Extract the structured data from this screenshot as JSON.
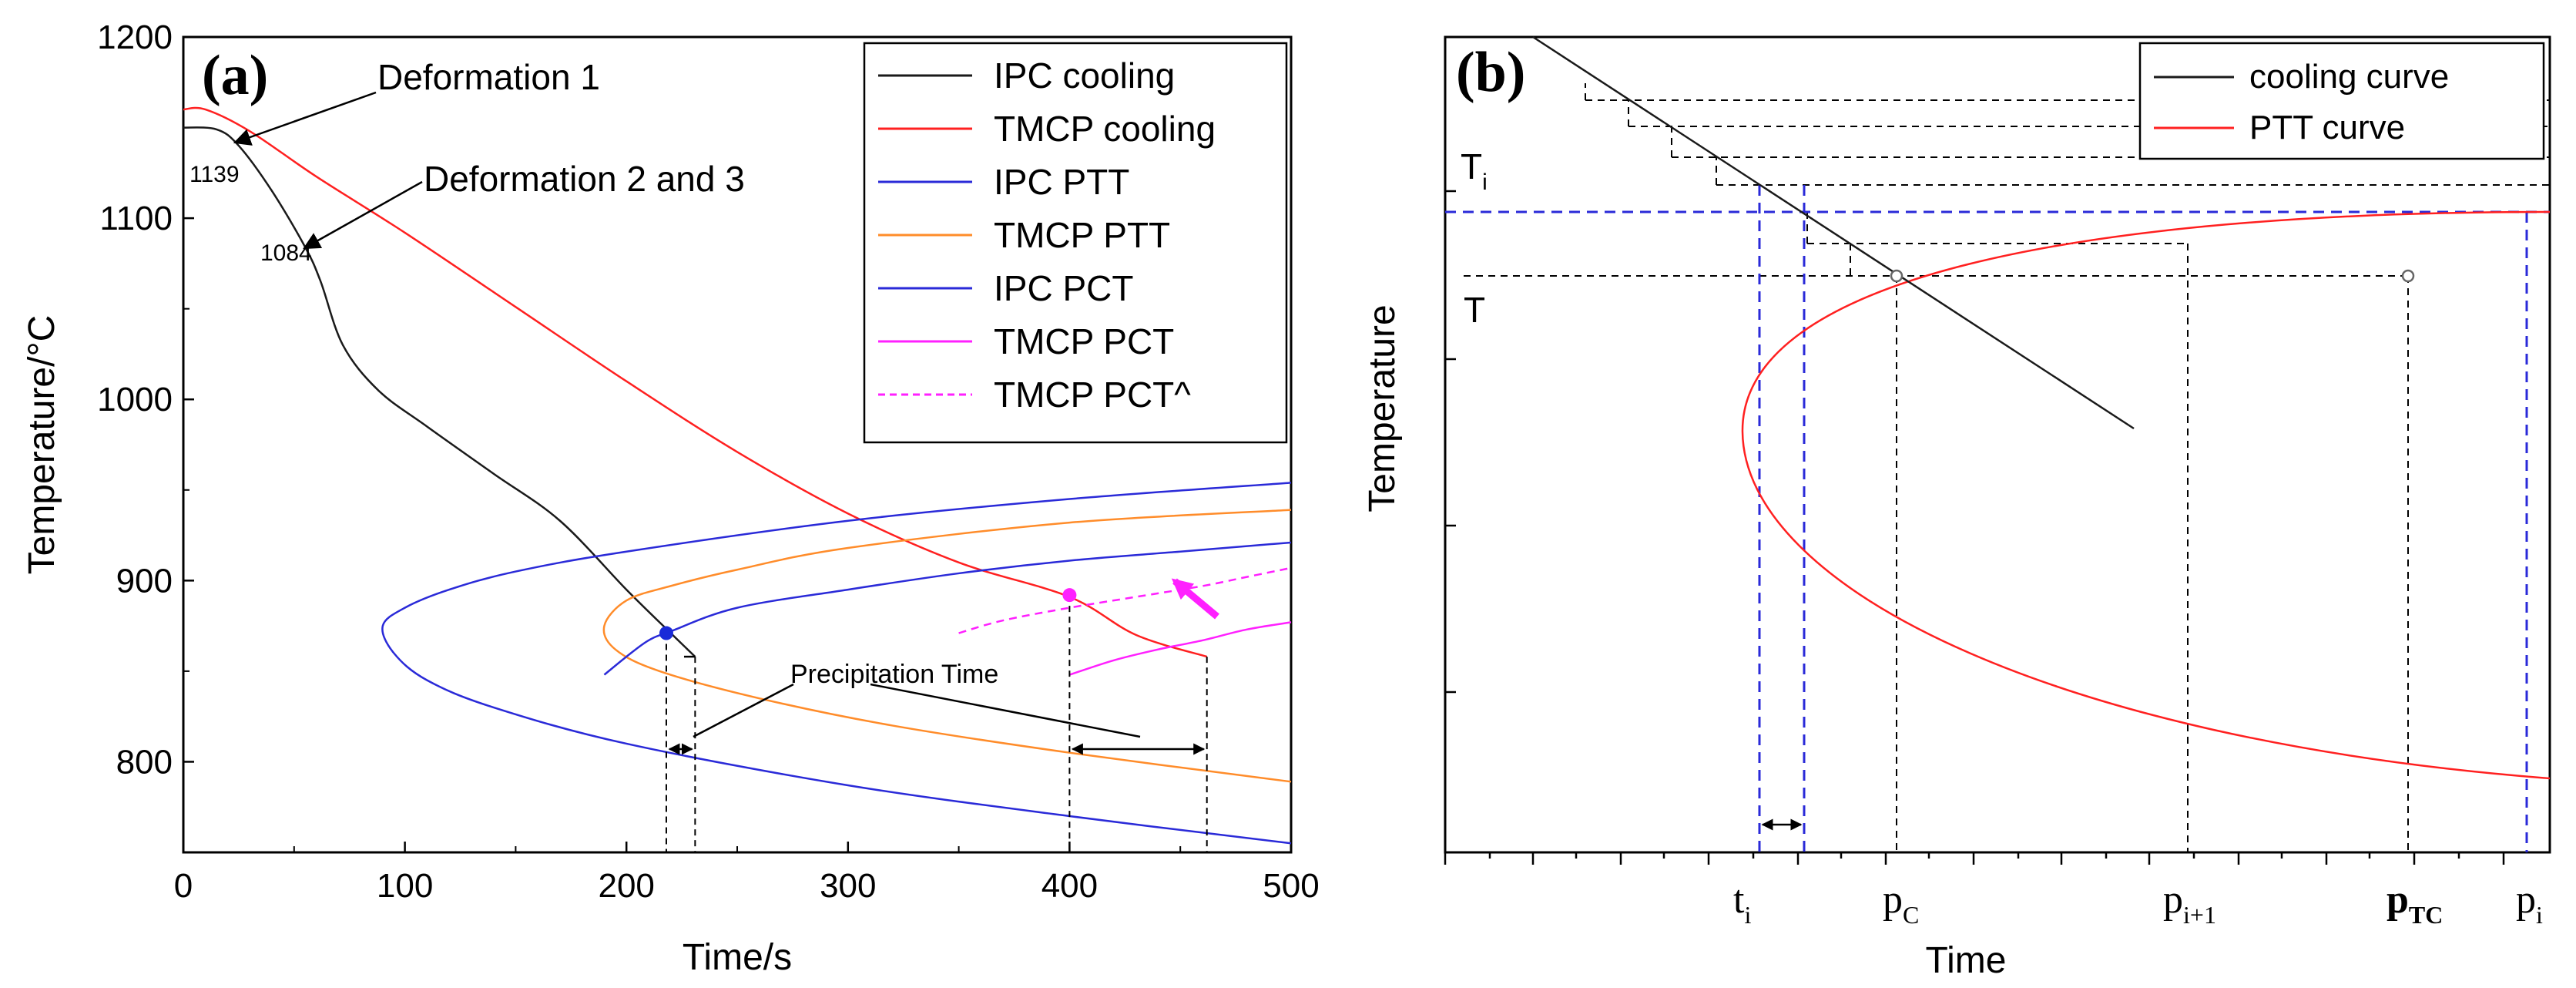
{
  "chart_data": [
    {
      "panel_label": "(a)",
      "type": "line",
      "xlabel": "Time/s",
      "ylabel": "Temperature/°C",
      "xlim": [
        0,
        500
      ],
      "ylim": [
        750,
        1200
      ],
      "x_ticks": [
        0,
        100,
        200,
        300,
        400,
        500
      ],
      "y_ticks": [
        800,
        900,
        1000,
        1100,
        1200
      ],
      "legend": {
        "placement": "top-right",
        "entries": [
          {
            "label": "IPC cooling",
            "color": "#1a1a1a",
            "dash": false
          },
          {
            "label": "TMCP cooling",
            "color": "#ff2020",
            "dash": false
          },
          {
            "label": "IPC PTT",
            "color": "#2a2ad8",
            "dash": false
          },
          {
            "label": "TMCP PTT",
            "color": "#ff8c2a",
            "dash": false
          },
          {
            "label": "IPC PCT",
            "color": "#2a2ad8",
            "dash": false
          },
          {
            "label": "TMCP PCT",
            "color": "#ff20ff",
            "dash": false
          },
          {
            "label": "TMCP PCT^",
            "color": "#ff20ff",
            "dash": true
          }
        ]
      },
      "series": [
        {
          "name": "IPC cooling",
          "color": "#1a1a1a",
          "points": [
            [
              0,
              1150
            ],
            [
              15,
              1149
            ],
            [
              25,
              1140
            ],
            [
              40,
              1115
            ],
            [
              55,
              1084
            ],
            [
              62,
              1065
            ],
            [
              72,
              1030
            ],
            [
              88,
              1005
            ],
            [
              110,
              985
            ],
            [
              140,
              959
            ],
            [
              170,
              933
            ],
            [
              200,
              895
            ],
            [
              220,
              871
            ],
            [
              231,
              858
            ]
          ]
        },
        {
          "name": "TMCP cooling",
          "color": "#ff2020",
          "points": [
            [
              0,
              1160
            ],
            [
              10,
              1160
            ],
            [
              30,
              1148
            ],
            [
              60,
              1123
            ],
            [
              100,
              1092
            ],
            [
              150,
              1051
            ],
            [
              200,
              1010
            ],
            [
              250,
              971
            ],
            [
              300,
              937
            ],
            [
              350,
              910
            ],
            [
              400,
              891
            ],
            [
              430,
              870
            ],
            [
              462,
              858
            ]
          ]
        },
        {
          "name": "IPC PTT",
          "color": "#2a2ad8",
          "points": [
            [
              500,
              954
            ],
            [
              400,
              945
            ],
            [
              300,
              933
            ],
            [
              200,
              916
            ],
            [
              150,
              905
            ],
            [
              120,
              895
            ],
            [
              100,
              885
            ],
            [
              90,
              875
            ],
            [
              95,
              860
            ],
            [
              110,
              845
            ],
            [
              140,
              830
            ],
            [
              200,
              810
            ],
            [
              300,
              787
            ],
            [
              400,
              770
            ],
            [
              500,
              755
            ]
          ]
        },
        {
          "name": "TMCP PTT",
          "color": "#ff8c2a",
          "points": [
            [
              500,
              939
            ],
            [
              400,
              932
            ],
            [
              300,
              918
            ],
            [
              250,
              906
            ],
            [
              220,
              897
            ],
            [
              200,
              889
            ],
            [
              190,
              875
            ],
            [
              195,
              862
            ],
            [
              215,
              850
            ],
            [
              260,
              835
            ],
            [
              320,
              820
            ],
            [
              400,
              805
            ],
            [
              500,
              789
            ]
          ]
        },
        {
          "name": "IPC PCT",
          "color": "#2a2ad8",
          "points": [
            [
              190,
              848
            ],
            [
              200,
              858
            ],
            [
              210,
              867
            ],
            [
              220,
              872
            ],
            [
              250,
              885
            ],
            [
              300,
              895
            ],
            [
              350,
              904
            ],
            [
              400,
              911
            ],
            [
              450,
              916
            ],
            [
              500,
              921
            ]
          ]
        },
        {
          "name": "TMCP PCT",
          "color": "#ff20ff",
          "points": [
            [
              400,
              848
            ],
            [
              420,
              856
            ],
            [
              440,
              862
            ],
            [
              460,
              867
            ],
            [
              480,
              873
            ],
            [
              500,
              877
            ]
          ]
        },
        {
          "name": "TMCP PCT^",
          "color": "#ff20ff",
          "dash": true,
          "points": [
            [
              350,
              871
            ],
            [
              370,
              878
            ],
            [
              400,
              885
            ],
            [
              430,
              891
            ],
            [
              460,
              897
            ],
            [
              480,
              902
            ],
            [
              500,
              907
            ]
          ]
        }
      ],
      "markers": [
        {
          "x": 218,
          "y": 871,
          "color": "#1a2ad8"
        },
        {
          "x": 400,
          "y": 892,
          "color": "#ff20ff"
        }
      ],
      "annotations": {
        "deformation1": "Deformation 1",
        "deformation23": "Deformation 2 and 3",
        "val1139": "1139",
        "val1084": "1084",
        "precip": "Precipitation Time"
      }
    },
    {
      "panel_label": "(b)",
      "type": "line",
      "xlabel": "Time",
      "ylabel": "Temperature",
      "legend": {
        "placement": "top-right",
        "entries": [
          {
            "label": "cooling curve",
            "color": "#1a1a1a"
          },
          {
            "label": "PTT curve",
            "color": "#ff2020"
          }
        ]
      },
      "y_labels": {
        "Ti": "T",
        "Ti_sub": "i",
        "T": "T"
      },
      "x_labels": [
        {
          "main": "t",
          "sub": "i"
        },
        {
          "main": "p",
          "sub": "C"
        },
        {
          "main": "p",
          "sub": "i+1"
        },
        {
          "main": "p",
          "sub": "TC",
          "bold": true
        },
        {
          "main": "p",
          "sub": "i"
        }
      ]
    }
  ]
}
